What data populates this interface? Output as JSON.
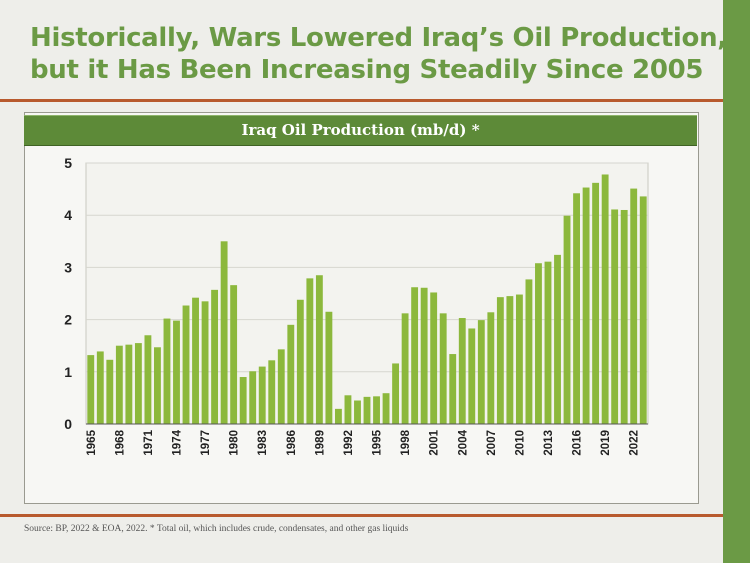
{
  "title_lines": [
    "Historically, Wars Lowered Iraq’s Oil Production,",
    "but it Has Been Increasing Steadily Since 2005"
  ],
  "source_note": "Source: BP, 2022 & EOA, 2022. * Total oil, which includes crude, condensates, and other gas liquids",
  "colors": {
    "accent": "#6b9a45",
    "bar": "#8cb83c",
    "rule": "#b85a2e"
  },
  "chart_data": {
    "type": "bar",
    "title": "Iraq Oil Production (mb/d) *",
    "xlabel": "",
    "ylabel": "",
    "ylim": [
      0,
      5
    ],
    "y_ticks": [
      0,
      1,
      2,
      3,
      4,
      5
    ],
    "x_tick_labels": [
      "1965",
      "1968",
      "1971",
      "1974",
      "1977",
      "1980",
      "1983",
      "1986",
      "1989",
      "1992",
      "1995",
      "1998",
      "2001",
      "2004",
      "2007",
      "2010",
      "2013",
      "2016",
      "2019",
      "2022"
    ],
    "grid": true,
    "categories": [
      "1965",
      "1966",
      "1967",
      "1968",
      "1969",
      "1970",
      "1971",
      "1972",
      "1973",
      "1974",
      "1975",
      "1976",
      "1977",
      "1978",
      "1979",
      "1980",
      "1981",
      "1982",
      "1983",
      "1984",
      "1985",
      "1986",
      "1987",
      "1988",
      "1989",
      "1990",
      "1991",
      "1992",
      "1993",
      "1994",
      "1995",
      "1996",
      "1997",
      "1998",
      "1999",
      "2000",
      "2001",
      "2002",
      "2003",
      "2004",
      "2005",
      "2006",
      "2007",
      "2008",
      "2009",
      "2010",
      "2011",
      "2012",
      "2013",
      "2014",
      "2015",
      "2016",
      "2017",
      "2018",
      "2019",
      "2020",
      "2021",
      "2022",
      "2023"
    ],
    "values": [
      1.32,
      1.39,
      1.23,
      1.5,
      1.52,
      1.55,
      1.7,
      1.47,
      2.02,
      1.98,
      2.27,
      2.42,
      2.35,
      2.57,
      3.5,
      2.66,
      0.9,
      1.01,
      1.1,
      1.22,
      1.43,
      1.9,
      2.38,
      2.79,
      2.85,
      2.15,
      0.29,
      0.55,
      0.45,
      0.52,
      0.53,
      0.59,
      1.16,
      2.12,
      2.62,
      2.61,
      2.52,
      2.12,
      1.34,
      2.03,
      1.83,
      1.99,
      2.14,
      2.43,
      2.45,
      2.48,
      2.77,
      3.08,
      3.11,
      3.24,
      3.99,
      4.42,
      4.53,
      4.62,
      4.78,
      4.11,
      4.1,
      4.51,
      4.36
    ]
  }
}
